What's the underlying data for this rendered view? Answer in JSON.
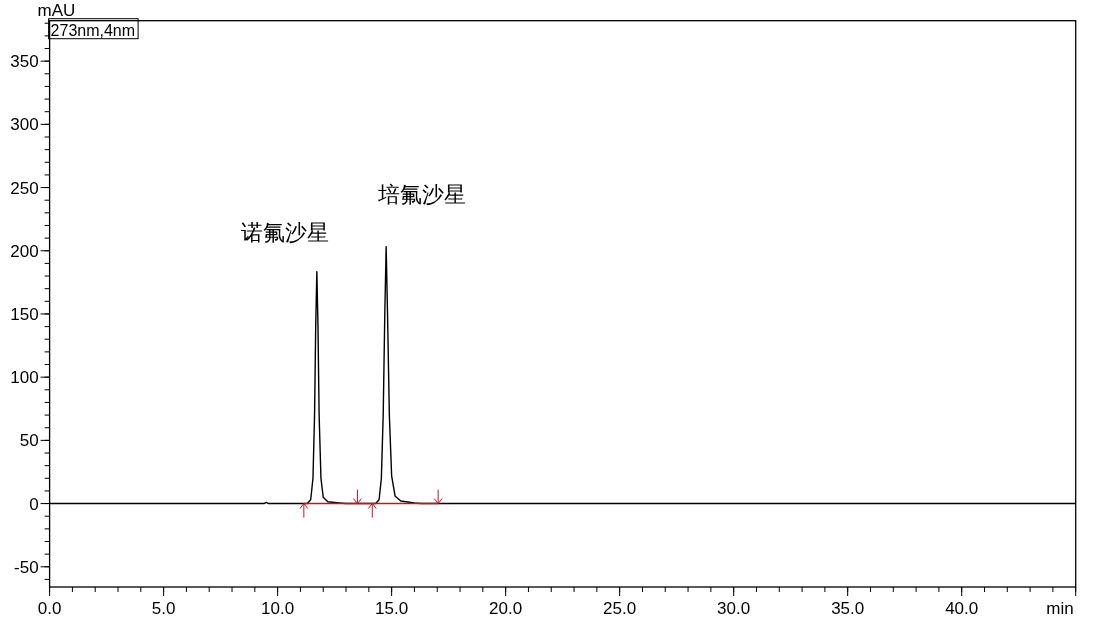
{
  "chart_data": {
    "type": "line",
    "xlabel": "min",
    "ylabel": "mAU",
    "annotations": [
      "273nm,4nm",
      {
        "text": "诺氟沙星",
        "x": 11.72,
        "y": 183.5
      },
      {
        "text": "培氟沙星",
        "x": 14.76,
        "y": 203.3
      }
    ],
    "series": [
      {
        "color": "#000000",
        "x": [
          0,
          9.4,
          9.5,
          9.6,
          11.3,
          11.45,
          11.55,
          11.62,
          11.67,
          11.72,
          11.77,
          11.82,
          11.9,
          12.0,
          12.2,
          12.7,
          13.0,
          14.3,
          14.45,
          14.55,
          14.63,
          14.7,
          14.76,
          14.82,
          14.9,
          15.0,
          15.15,
          15.4,
          16.0,
          16.3,
          45
        ],
        "values": [
          0,
          0,
          1,
          0,
          0,
          3,
          20,
          70,
          140,
          183.5,
          140,
          70,
          20,
          5,
          1.5,
          0.5,
          0,
          0,
          3,
          20,
          70,
          150,
          203.3,
          150,
          70,
          22,
          6,
          2,
          0.5,
          0,
          0
        ]
      },
      {
        "color": "#cc1020",
        "x": [
          11.15,
          13.5,
          14.15,
          17.04
        ],
        "values": [
          0,
          0,
          0,
          0
        ]
      }
    ],
    "xlim": [
      0,
      45
    ],
    "ylim": [
      -66,
      382
    ],
    "xticks": [
      {
        "value": 0,
        "label": "0.0"
      },
      {
        "value": 5,
        "label": "5.0"
      },
      {
        "value": 10,
        "label": "10.0"
      },
      {
        "value": 15,
        "label": "15.0"
      },
      {
        "value": 20,
        "label": "20.0"
      },
      {
        "value": 25,
        "label": "25.0"
      },
      {
        "value": 30,
        "label": "30.0"
      },
      {
        "value": 35,
        "label": "35.0"
      },
      {
        "value": 40,
        "label": "40.0"
      },
      {
        "value": 45,
        "label": null
      }
    ],
    "yticks": [
      -50,
      0,
      50,
      100,
      150,
      200,
      250,
      300,
      350
    ],
    "marker": "none",
    "line_style": "solid"
  }
}
